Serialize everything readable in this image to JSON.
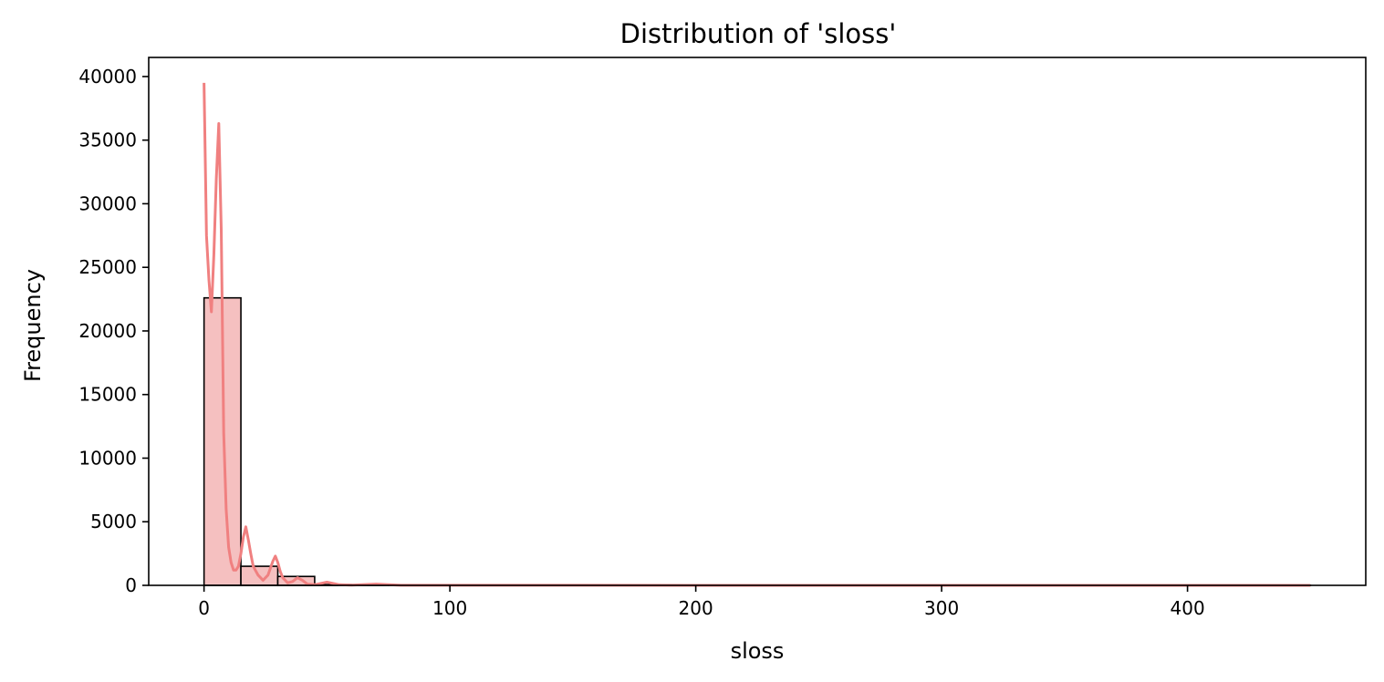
{
  "chart_data": {
    "type": "histogram",
    "title": "Distribution of 'sloss'",
    "xlabel": "sloss",
    "ylabel": "Frequency",
    "xlim": [
      -22.5,
      472.5
    ],
    "ylim": [
      0,
      41500
    ],
    "x_ticks": [
      0,
      100,
      200,
      300,
      400
    ],
    "y_ticks": [
      0,
      5000,
      10000,
      15000,
      20000,
      25000,
      30000,
      35000,
      40000
    ],
    "grid": false,
    "legend": "none",
    "bin_width": 15,
    "bins": [
      {
        "start": 0,
        "end": 15,
        "count": 22600
      },
      {
        "start": 15,
        "end": 30,
        "count": 1500
      },
      {
        "start": 30,
        "end": 45,
        "count": 700
      },
      {
        "start": 45,
        "end": 60,
        "count": 60
      },
      {
        "start": 60,
        "end": 75,
        "count": 30
      },
      {
        "start": 75,
        "end": 90,
        "count": 20
      },
      {
        "start": 90,
        "end": 105,
        "count": 10
      },
      {
        "start": 105,
        "end": 120,
        "count": 5
      },
      {
        "start": 120,
        "end": 135,
        "count": 5
      },
      {
        "start": 135,
        "end": 150,
        "count": 5
      },
      {
        "start": 150,
        "end": 165,
        "count": 2
      },
      {
        "start": 165,
        "end": 180,
        "count": 2
      },
      {
        "start": 180,
        "end": 195,
        "count": 2
      },
      {
        "start": 195,
        "end": 210,
        "count": 1
      },
      {
        "start": 210,
        "end": 225,
        "count": 1
      },
      {
        "start": 225,
        "end": 240,
        "count": 1
      },
      {
        "start": 240,
        "end": 255,
        "count": 1
      },
      {
        "start": 255,
        "end": 270,
        "count": 1
      },
      {
        "start": 270,
        "end": 285,
        "count": 1
      },
      {
        "start": 285,
        "end": 300,
        "count": 1
      },
      {
        "start": 300,
        "end": 315,
        "count": 1
      },
      {
        "start": 315,
        "end": 330,
        "count": 1
      },
      {
        "start": 330,
        "end": 345,
        "count": 1
      },
      {
        "start": 345,
        "end": 360,
        "count": 1
      },
      {
        "start": 360,
        "end": 375,
        "count": 1
      },
      {
        "start": 375,
        "end": 390,
        "count": 1
      },
      {
        "start": 390,
        "end": 405,
        "count": 1
      },
      {
        "start": 405,
        "end": 420,
        "count": 1
      },
      {
        "start": 420,
        "end": 435,
        "count": 1
      },
      {
        "start": 435,
        "end": 450,
        "count": 1
      }
    ],
    "kde": {
      "x": [
        0,
        1,
        2,
        3,
        4,
        5,
        6,
        7,
        8,
        9,
        10,
        11,
        12,
        13,
        14,
        15,
        16,
        17,
        18,
        19,
        20,
        22,
        24,
        26,
        28,
        29,
        30,
        31,
        32,
        34,
        36,
        38,
        40,
        42,
        45,
        50,
        55,
        60,
        70,
        80,
        90,
        100,
        150,
        200,
        300,
        450
      ],
      "y": [
        39500,
        27500,
        24000,
        21500,
        26000,
        32000,
        36300,
        28000,
        12000,
        6000,
        3000,
        1800,
        1200,
        1200,
        1500,
        2500,
        3800,
        4600,
        3600,
        2500,
        1500,
        800,
        400,
        800,
        1900,
        2300,
        1800,
        1100,
        600,
        200,
        300,
        600,
        400,
        100,
        50,
        250,
        50,
        20,
        100,
        10,
        5,
        5,
        5,
        2,
        1,
        1
      ],
      "color": "#f08080"
    },
    "bar_fill": "#f5c0c0",
    "bar_edge": "#000000"
  }
}
